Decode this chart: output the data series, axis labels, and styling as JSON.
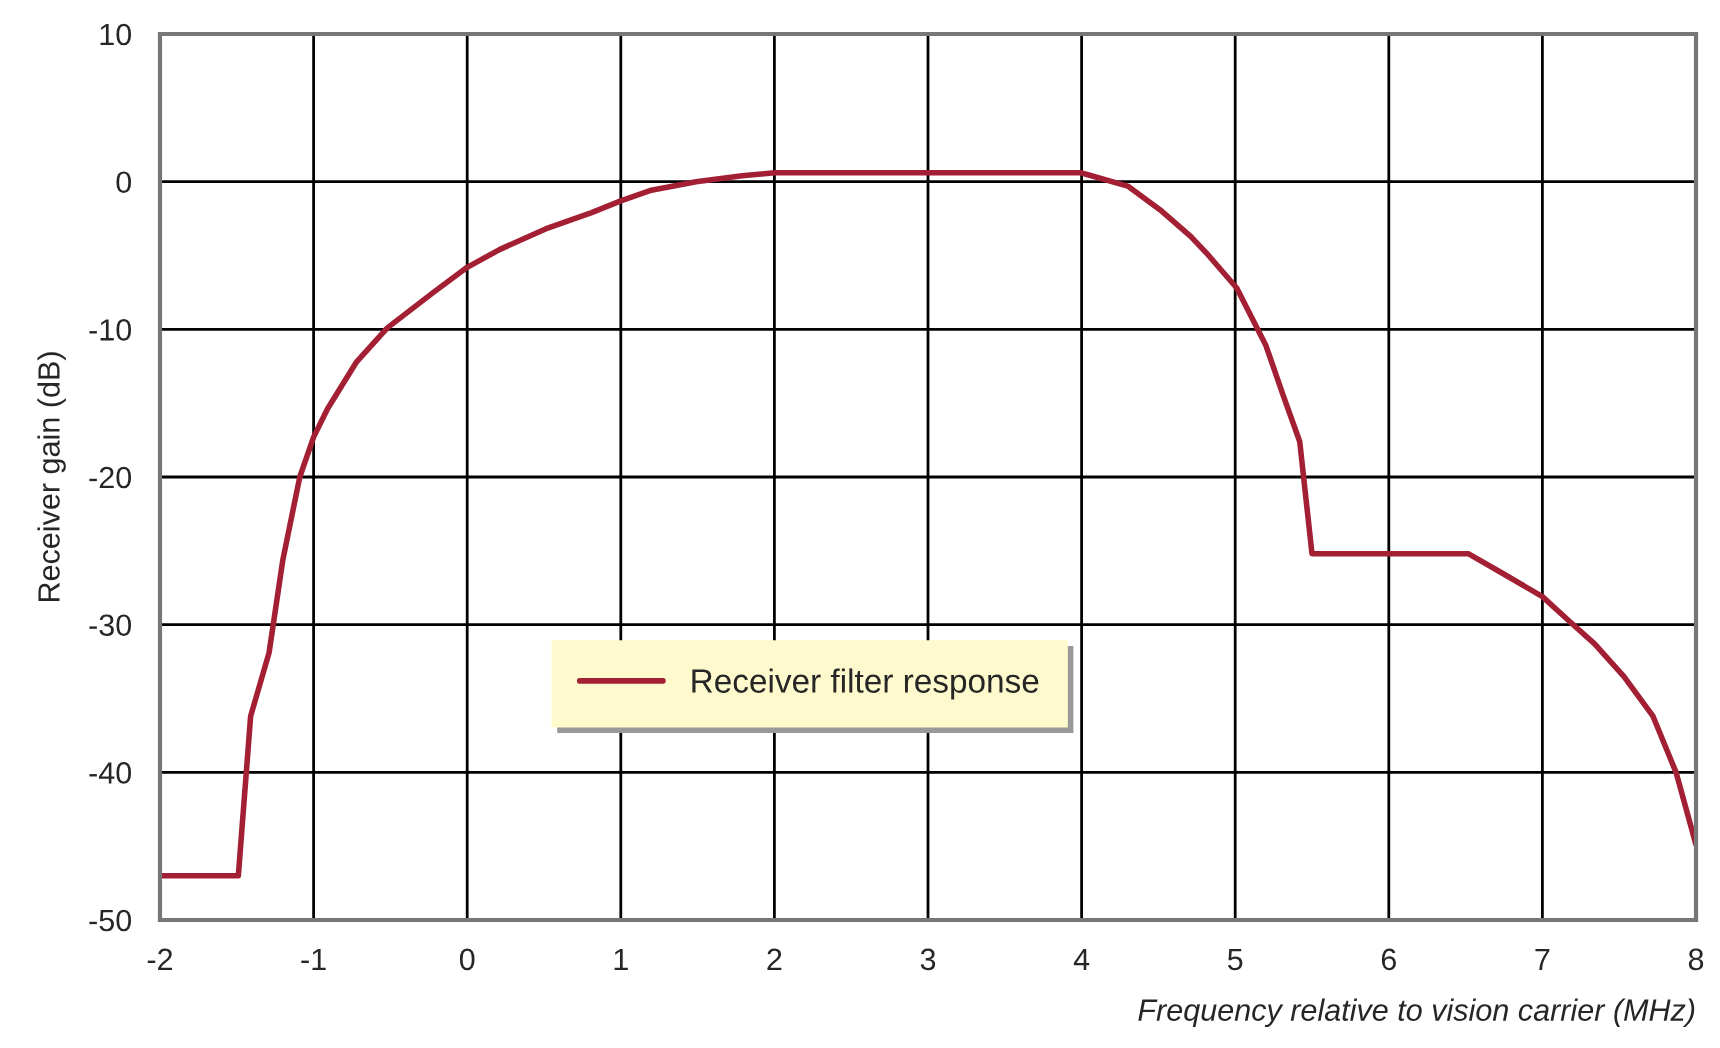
{
  "chart_data": {
    "type": "line",
    "xlabel": "Frequency relative to vision carrier (MHz)",
    "ylabel": "Receiver gain (dB)",
    "xlim": [
      -2,
      8
    ],
    "xticks": [
      -2,
      -1,
      0,
      1,
      2,
      3,
      4,
      5,
      6,
      7,
      8
    ],
    "ylim": [
      -50,
      10
    ],
    "yticks": [
      -50,
      -40,
      -30,
      -20,
      -10,
      0,
      10
    ],
    "grid": true,
    "legend": "bottom left",
    "marker": "none",
    "line_style": "solid",
    "series": [
      {
        "name": "Receiver filter response",
        "color": "#a31f34",
        "x": [
          -2,
          -1.49,
          -1.41,
          -1.29,
          -1.2,
          -1.09,
          -1,
          -0.91,
          -0.72,
          -0.52,
          -0.22,
          0,
          0.21,
          0.51,
          0.81,
          1,
          1.19,
          1.49,
          1.79,
          2,
          4,
          4.03,
          4.3,
          4.51,
          4.71,
          4.81,
          5.01,
          5.2,
          5.31,
          5.42,
          5.5,
          6.52,
          6.72,
          7,
          7.19,
          7.34,
          7.53,
          7.72,
          7.87,
          8
        ],
        "values": [
          -47,
          -47,
          -36.2,
          -31.9,
          -25.6,
          -20,
          -17.3,
          -15.4,
          -12.2,
          -9.9,
          -7.5,
          -5.8,
          -4.6,
          -3.2,
          -2.1,
          -1.3,
          -0.6,
          0,
          0.4,
          0.6,
          0.6,
          0.5,
          -0.3,
          -1.9,
          -3.7,
          -4.8,
          -7.2,
          -11.1,
          -14.4,
          -17.6,
          -25.2,
          -25.2,
          -26.4,
          -28.1,
          -29.9,
          -31.3,
          -33.5,
          -36.2,
          -40,
          -44.9
        ]
      }
    ]
  }
}
